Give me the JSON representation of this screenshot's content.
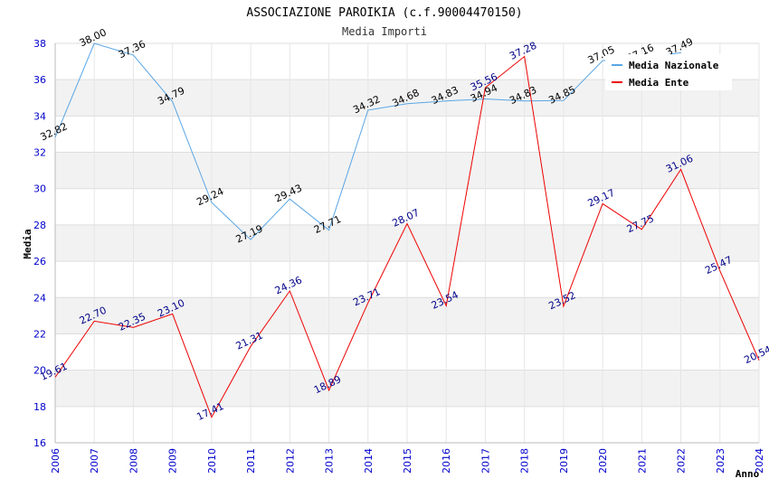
{
  "chart_data": {
    "type": "line",
    "title": "ASSOCIAZIONE PAROIKIA (c.f.90004470150)",
    "subtitle": "Media Importi",
    "xlabel": "Anno",
    "ylabel": "Media",
    "ylim": [
      16,
      38
    ],
    "yticks": [
      16,
      18,
      20,
      22,
      24,
      26,
      28,
      30,
      32,
      34,
      36,
      38
    ],
    "x": [
      "2006",
      "2007",
      "2008",
      "2009",
      "2010",
      "2011",
      "2012",
      "2013",
      "2014",
      "2015",
      "2016",
      "2017",
      "2018",
      "2019",
      "2020",
      "2021",
      "2022",
      "2023",
      "2024"
    ],
    "grid": "alternating horizontal bands",
    "legend_position": "top-right",
    "series": [
      {
        "name": "Media Nazionale",
        "color": "#5aa6e6",
        "label_color": "#000000",
        "values": [
          32.82,
          38.0,
          37.36,
          34.79,
          29.24,
          27.19,
          29.43,
          27.71,
          34.32,
          34.68,
          34.83,
          34.94,
          34.83,
          34.85,
          37.05,
          37.16,
          37.49,
          null,
          null
        ],
        "labels": [
          "32.82",
          "38.00",
          "37.36",
          "34.79",
          "29.24",
          "27.19",
          "29.43",
          "27.71",
          "34.32",
          "34.68",
          "34.83",
          "34.94",
          "34.83",
          "34.85",
          "37.05",
          "37.16",
          "37.49",
          null,
          null
        ]
      },
      {
        "name": "Media Ente",
        "color": "#ee0000",
        "label_color": "#000088",
        "values": [
          19.61,
          22.7,
          22.35,
          23.1,
          17.41,
          21.31,
          24.36,
          18.89,
          23.71,
          28.07,
          23.54,
          35.56,
          37.28,
          23.52,
          29.17,
          27.75,
          31.06,
          25.47,
          20.54
        ],
        "labels": [
          "19.61",
          "22.70",
          "22.35",
          "23.10",
          "17.41",
          "21.31",
          "24.36",
          "18.89",
          "23.71",
          "28.07",
          "23.54",
          "35.56",
          "37.28",
          "23.52",
          "29.17",
          "27.75",
          "31.06",
          "25.47",
          "20.54"
        ]
      }
    ]
  }
}
